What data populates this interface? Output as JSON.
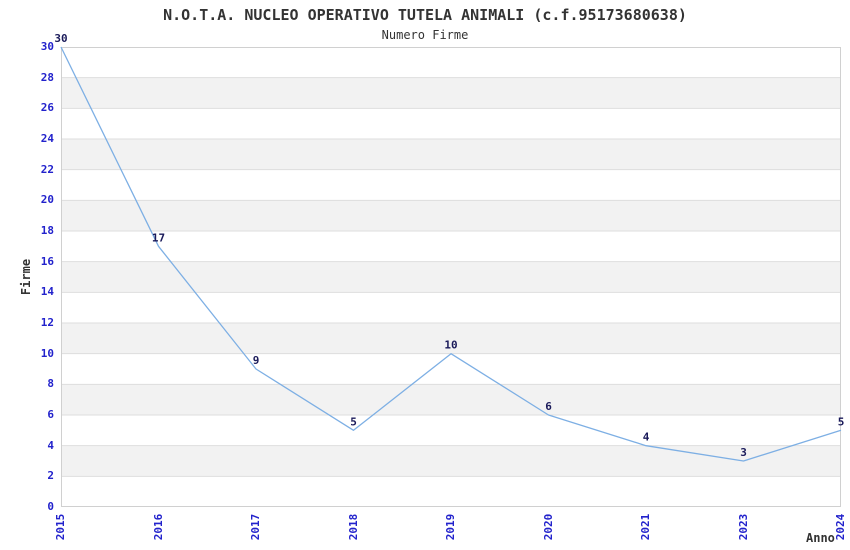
{
  "chart_data": {
    "type": "line",
    "title": "N.O.T.A. NUCLEO OPERATIVO TUTELA ANIMALI (c.f.95173680638)",
    "subtitle": "Numero Firme",
    "xlabel": "Anno",
    "ylabel": "Firme",
    "categories": [
      "2015",
      "2016",
      "2017",
      "2018",
      "2019",
      "2020",
      "2021",
      "2023",
      "2024"
    ],
    "values": [
      30,
      17,
      9,
      5,
      10,
      6,
      4,
      3,
      5
    ],
    "ylim": [
      0,
      30
    ],
    "ytick_step": 2,
    "grid": true,
    "banded_background": true,
    "legend": "none",
    "colors": {
      "line": "#7dafe4",
      "tick_label": "#2222cc",
      "data_label": "#1a1a5a",
      "band": "#f2f2f2",
      "gridline": "#dedede",
      "plot_border": "#d0d0d0",
      "title": "#333333",
      "axis_label": "#333333",
      "background": "#ffffff"
    }
  }
}
